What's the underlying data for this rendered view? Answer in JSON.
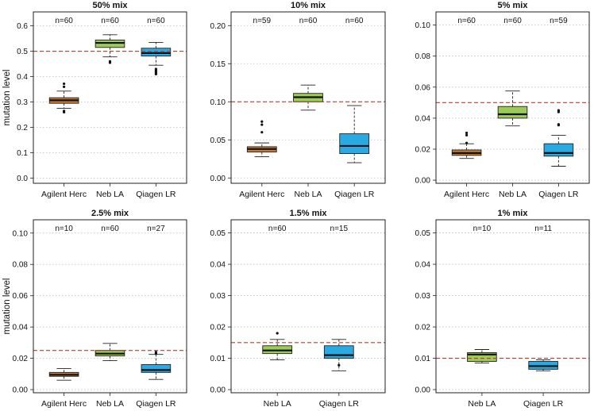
{
  "chart_data": [
    {
      "type": "boxplot",
      "title": "50% mix",
      "ylabel": "mutation level",
      "ylim": [
        -0.02,
        0.655
      ],
      "yticks": [
        0.0,
        0.1,
        0.2,
        0.3,
        0.4,
        0.5,
        0.6
      ],
      "ytick_labels": [
        "0.0",
        "0.1",
        "0.2",
        "0.3",
        "0.4",
        "0.5",
        "0.6"
      ],
      "reference_line": 0.5,
      "categories": [
        "Agilent Herc",
        "Neb LA",
        "Qiagen LR"
      ],
      "n_labels": [
        "n=60",
        "n=60",
        "n=60"
      ],
      "boxes": [
        {
          "name": "Agilent Herc",
          "color": "#c77c31",
          "whisker_low": 0.275,
          "q1": 0.295,
          "median": 0.307,
          "q3": 0.317,
          "whisker_high": 0.343,
          "outliers": [
            0.26,
            0.265,
            0.36,
            0.372
          ]
        },
        {
          "name": "Neb LA",
          "color": "#9ccc55",
          "whisker_low": 0.478,
          "q1": 0.515,
          "median": 0.533,
          "q3": 0.544,
          "whisker_high": 0.565,
          "outliers": [
            0.455,
            0.46
          ]
        },
        {
          "name": "Qiagen LR",
          "color": "#29aae2",
          "whisker_low": 0.445,
          "q1": 0.481,
          "median": 0.493,
          "q3": 0.512,
          "whisker_high": 0.535,
          "outliers": [
            0.41,
            0.415,
            0.42,
            0.425,
            0.43
          ]
        }
      ]
    },
    {
      "type": "boxplot",
      "title": "10% mix",
      "ylabel": "",
      "ylim": [
        -0.007,
        0.218
      ],
      "yticks": [
        0.0,
        0.05,
        0.1,
        0.15,
        0.2
      ],
      "ytick_labels": [
        "0.00",
        "0.05",
        "0.10",
        "0.15",
        "0.20"
      ],
      "reference_line": 0.1,
      "categories": [
        "Agilent Herc",
        "Neb LA",
        "Qiagen LR"
      ],
      "n_labels": [
        "n=59",
        "n=60",
        "n=60"
      ],
      "boxes": [
        {
          "name": "Agilent Herc",
          "color": "#c77c31",
          "whisker_low": 0.028,
          "q1": 0.034,
          "median": 0.038,
          "q3": 0.041,
          "whisker_high": 0.046,
          "outliers": [
            0.06,
            0.07,
            0.074
          ]
        },
        {
          "name": "Neb LA",
          "color": "#9ccc55",
          "whisker_low": 0.089,
          "q1": 0.1,
          "median": 0.106,
          "q3": 0.111,
          "whisker_high": 0.122,
          "outliers": []
        },
        {
          "name": "Qiagen LR",
          "color": "#29aae2",
          "whisker_low": 0.02,
          "q1": 0.032,
          "median": 0.042,
          "q3": 0.058,
          "whisker_high": 0.095,
          "outliers": []
        }
      ]
    },
    {
      "type": "boxplot",
      "title": "5% mix",
      "ylabel": "",
      "ylim": [
        -0.002,
        0.1085
      ],
      "yticks": [
        0.0,
        0.02,
        0.04,
        0.06,
        0.08,
        0.1
      ],
      "ytick_labels": [
        "0.00",
        "0.02",
        "0.04",
        "0.06",
        "0.08",
        "0.10"
      ],
      "reference_line": 0.05,
      "categories": [
        "Agilent Herc",
        "Neb LA",
        "Qiagen LR"
      ],
      "n_labels": [
        "n=60",
        "n=60",
        "n=59"
      ],
      "boxes": [
        {
          "name": "Agilent Herc",
          "color": "#c77c31",
          "whisker_low": 0.014,
          "q1": 0.016,
          "median": 0.0175,
          "q3": 0.0195,
          "whisker_high": 0.0235,
          "outliers": [
            0.024,
            0.029,
            0.0305
          ]
        },
        {
          "name": "Neb LA",
          "color": "#9ccc55",
          "whisker_low": 0.035,
          "q1": 0.04,
          "median": 0.0425,
          "q3": 0.0475,
          "whisker_high": 0.0575,
          "outliers": []
        },
        {
          "name": "Qiagen LR",
          "color": "#29aae2",
          "whisker_low": 0.009,
          "q1": 0.0155,
          "median": 0.0175,
          "q3": 0.0235,
          "whisker_high": 0.029,
          "outliers": [
            0.0355,
            0.036,
            0.044,
            0.045
          ]
        }
      ]
    },
    {
      "type": "boxplot",
      "title": "2.5% mix",
      "ylabel": "mutation level",
      "ylim": [
        -0.002,
        0.1085
      ],
      "yticks": [
        0.0,
        0.02,
        0.04,
        0.06,
        0.08,
        0.1
      ],
      "ytick_labels": [
        "0.00",
        "0.02",
        "0.04",
        "0.06",
        "0.08",
        "0.10"
      ],
      "reference_line": 0.025,
      "categories": [
        "Agilent Herc",
        "Neb LA",
        "Qiagen LR"
      ],
      "n_labels": [
        "n=10",
        "n=60",
        "n=27"
      ],
      "boxes": [
        {
          "name": "Agilent Herc",
          "color": "#c77c31",
          "whisker_low": 0.006,
          "q1": 0.0085,
          "median": 0.0095,
          "q3": 0.011,
          "whisker_high": 0.0135,
          "outliers": []
        },
        {
          "name": "Neb LA",
          "color": "#9ccc55",
          "whisker_low": 0.0185,
          "q1": 0.0215,
          "median": 0.023,
          "q3": 0.025,
          "whisker_high": 0.0295,
          "outliers": []
        },
        {
          "name": "Qiagen LR",
          "color": "#29aae2",
          "whisker_low": 0.0065,
          "q1": 0.011,
          "median": 0.0125,
          "q3": 0.016,
          "whisker_high": 0.0225,
          "outliers": [
            0.023,
            0.024
          ]
        }
      ]
    },
    {
      "type": "boxplot",
      "title": "1.5% mix",
      "ylabel": "",
      "ylim": [
        -0.001,
        0.0542
      ],
      "yticks": [
        0.0,
        0.01,
        0.02,
        0.03,
        0.04,
        0.05
      ],
      "ytick_labels": [
        "0.00",
        "0.01",
        "0.02",
        "0.03",
        "0.04",
        "0.05"
      ],
      "reference_line": 0.015,
      "categories": [
        "Neb LA",
        "Qiagen LR"
      ],
      "n_labels": [
        "n=60",
        "n=15"
      ],
      "boxes": [
        {
          "name": "Neb LA",
          "color": "#9ccc55",
          "whisker_low": 0.0095,
          "q1": 0.0115,
          "median": 0.0125,
          "q3": 0.014,
          "whisker_high": 0.016,
          "outliers": [
            0.018
          ]
        },
        {
          "name": "Qiagen LR",
          "color": "#29aae2",
          "whisker_low": 0.006,
          "q1": 0.01,
          "median": 0.011,
          "q3": 0.014,
          "whisker_high": 0.016,
          "outliers": [
            0.0078
          ]
        }
      ]
    },
    {
      "type": "boxplot",
      "title": "1% mix",
      "ylabel": "",
      "ylim": [
        -0.001,
        0.0542
      ],
      "yticks": [
        0.0,
        0.01,
        0.02,
        0.03,
        0.04,
        0.05
      ],
      "ytick_labels": [
        "0.00",
        "0.01",
        "0.02",
        "0.03",
        "0.04",
        "0.05"
      ],
      "reference_line": 0.01,
      "categories": [
        "Neb LA",
        "Qiagen LR"
      ],
      "n_labels": [
        "n=10",
        "n=11"
      ],
      "boxes": [
        {
          "name": "Neb LA",
          "color": "#9ccc55",
          "whisker_low": 0.0085,
          "q1": 0.009,
          "median": 0.0112,
          "q3": 0.0118,
          "whisker_high": 0.0128,
          "outliers": []
        },
        {
          "name": "Qiagen LR",
          "color": "#29aae2",
          "whisker_low": 0.006,
          "q1": 0.0065,
          "median": 0.0075,
          "q3": 0.009,
          "whisker_high": 0.0095,
          "outliers": []
        }
      ]
    }
  ],
  "colors": {
    "reference_line": "#c0392b",
    "grid": "#bbbbbb",
    "frame": "#222222"
  }
}
